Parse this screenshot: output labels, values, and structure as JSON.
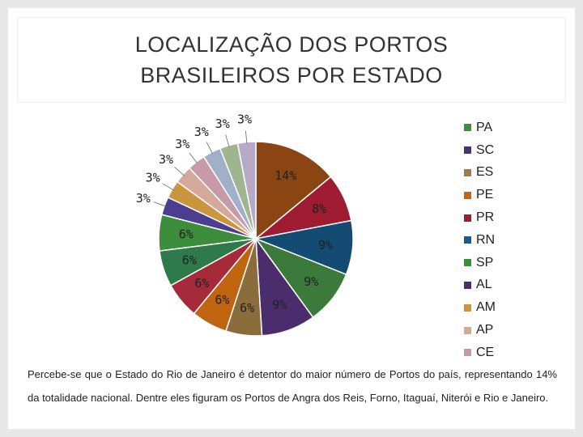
{
  "title_lines": [
    "LOCALIZAÇÃO DOS PORTOS",
    "BRASILEIROS POR ESTADO"
  ],
  "caption": "Percebe-se que o Estado do Rio de Janeiro é detentor do maior número de Portos do país, representando 14% da totalidade nacional. Dentre eles figuram os Portos de Angra dos Reis, Forno, Itaguaí, Niterói e Rio e Janeiro.",
  "chart_data": {
    "type": "pie",
    "title": "",
    "series": [
      {
        "values": [
          14,
          8,
          9,
          9,
          9,
          6,
          6,
          6,
          6,
          6,
          3,
          3,
          3,
          3,
          3,
          3,
          3
        ],
        "labels": [
          "14%",
          "8%",
          "9%",
          "9%",
          "9%",
          "6%",
          "6%",
          "6%",
          "6%",
          "6%",
          "3%",
          "3%",
          "3%",
          "3%",
          "3%",
          "3%",
          "3%"
        ],
        "colors": [
          "#8b4513",
          "#9e1b32",
          "#134b73",
          "#3b7a3a",
          "#4b2d6e",
          "#8a6d3b",
          "#c0640f",
          "#a52a3a",
          "#2f7a4a",
          "#3c8d3c",
          "#4b3d8f",
          "#c9963f",
          "#d4a89a",
          "#c79aa7",
          "#9fb0c8",
          "#9fb58f",
          "#b9a9c8"
        ]
      }
    ],
    "legend": {
      "position": "right",
      "entries": [
        {
          "name": "PA",
          "color": "#3f8d3f"
        },
        {
          "name": "SC",
          "color": "#4b3080"
        },
        {
          "name": "ES",
          "color": "#9c7e44"
        },
        {
          "name": "PE",
          "color": "#c8630f"
        },
        {
          "name": "PR",
          "color": "#9e1b32"
        },
        {
          "name": "RN",
          "color": "#1d5a8a"
        },
        {
          "name": "SP",
          "color": "#3c8d3c"
        },
        {
          "name": "AL",
          "color": "#4b2d6e"
        },
        {
          "name": "AM",
          "color": "#c9963f"
        },
        {
          "name": "AP",
          "color": "#d4a89a"
        },
        {
          "name": "CE",
          "color": "#c79aa7"
        }
      ]
    }
  }
}
